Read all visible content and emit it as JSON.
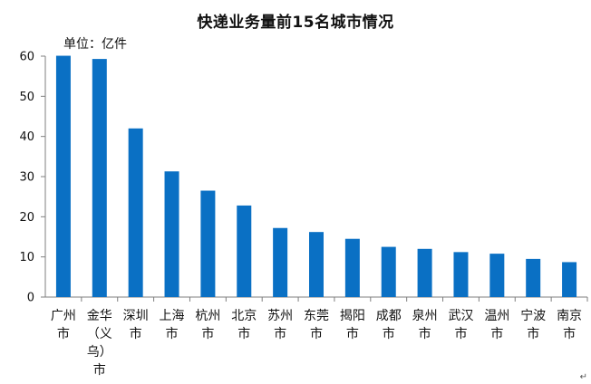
{
  "chart_data": {
    "type": "bar",
    "title": "快递业务量前15名城市情况",
    "unit_label": "单位：亿件",
    "categories": [
      [
        "广州",
        "市"
      ],
      [
        "金华",
        "（义",
        "乌）",
        "市"
      ],
      [
        "深圳",
        "市"
      ],
      [
        "上海",
        "市"
      ],
      [
        "杭州",
        "市"
      ],
      [
        "北京",
        "市"
      ],
      [
        "苏州",
        "市"
      ],
      [
        "东莞",
        "市"
      ],
      [
        "揭阳",
        "市"
      ],
      [
        "成都",
        "市"
      ],
      [
        "泉州",
        "市"
      ],
      [
        "武汉",
        "市"
      ],
      [
        "温州",
        "市"
      ],
      [
        "宁波",
        "市"
      ],
      [
        "南京",
        "市"
      ]
    ],
    "values": [
      60.1,
      59.3,
      42.0,
      31.3,
      26.5,
      22.8,
      17.2,
      16.2,
      14.5,
      12.5,
      12.0,
      11.2,
      10.8,
      9.5,
      8.7
    ],
    "yticks": [
      "0",
      "10",
      "20",
      "30",
      "40",
      "50",
      "60"
    ],
    "ylim": [
      0,
      60
    ],
    "bar_color": "#0a70c4",
    "axis_color": "#7f7f7f",
    "grid": false,
    "legend": "none"
  },
  "corner_mark": "↵"
}
